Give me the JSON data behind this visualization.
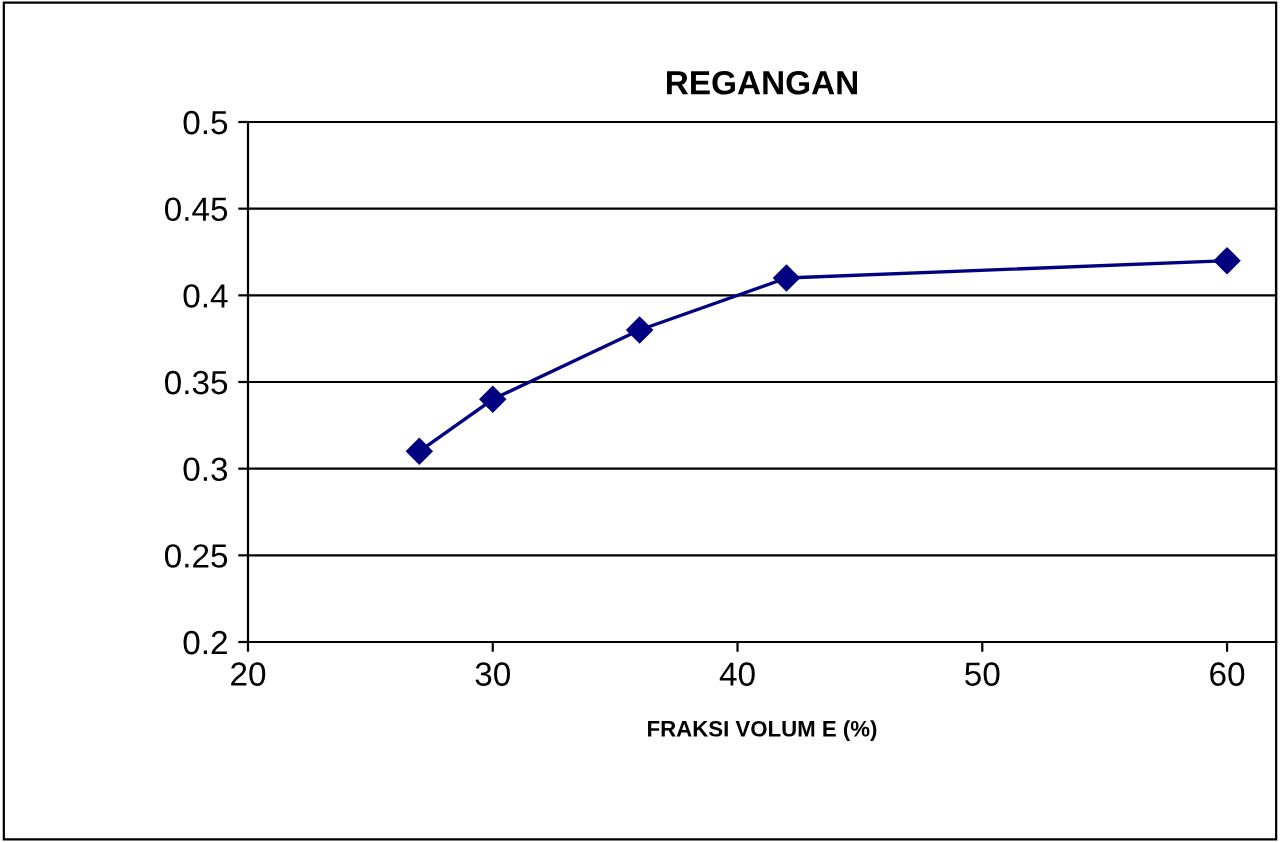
{
  "chart_data": {
    "type": "line",
    "title": "REGANGAN",
    "xlabel": "FRAKSI VOLUM E (%)",
    "x": [
      27,
      30,
      36,
      42,
      60
    ],
    "series": [
      {
        "color": "#000080",
        "values": [
          0.31,
          0.34,
          0.38,
          0.41,
          0.42
        ]
      }
    ],
    "xlim": [
      20,
      62
    ],
    "xticks": [
      20,
      30,
      40,
      50,
      60
    ],
    "ylim": [
      0.2,
      0.5
    ],
    "yticks": [
      0.2,
      0.25,
      0.3,
      0.35,
      0.4,
      0.45,
      0.5
    ],
    "grid": "y",
    "marker": "diamond",
    "line_style": "solid"
  }
}
